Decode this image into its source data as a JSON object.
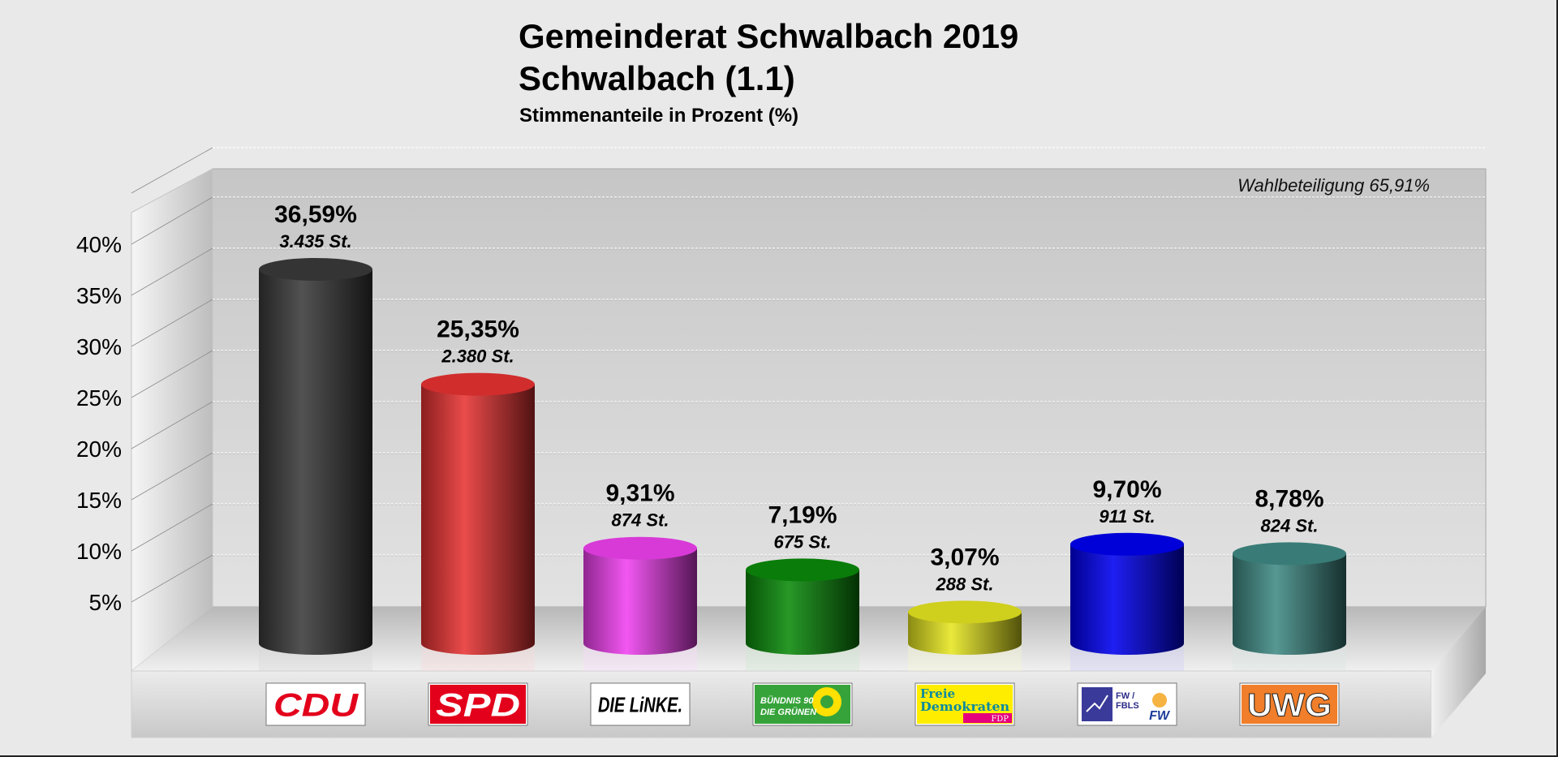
{
  "header": {
    "title": "Gemeinderat Schwalbach 2019",
    "subtitle": "Schwalbach (1.1)",
    "caption": "Stimmenanteile in Prozent (%)"
  },
  "chart_data": {
    "type": "bar",
    "style": "3d-cylinder",
    "title": "Gemeinderat Schwalbach 2019",
    "subtitle": "Schwalbach (1.1)",
    "ylabel": "Stimmenanteile in Prozent (%)",
    "xlabel": "",
    "ylim": [
      0,
      45
    ],
    "yticks": [
      5,
      10,
      15,
      20,
      25,
      30,
      35,
      40
    ],
    "ytick_labels": [
      "5%",
      "10%",
      "15%",
      "20%",
      "25%",
      "30%",
      "35%",
      "40%"
    ],
    "grid": true,
    "annotation": "Wahlbeteiligung 65,91%",
    "categories": [
      "CDU",
      "SPD",
      "DIE LINKE.",
      "BÜNDNIS 90 DIE GRÜNEN",
      "Freie Demokraten FDP",
      "FW / FBLS",
      "UWG"
    ],
    "values": [
      36.59,
      25.35,
      9.31,
      7.19,
      3.07,
      9.7,
      8.78
    ],
    "value_labels": [
      "36,59%",
      "25,35%",
      "9,31%",
      "7,19%",
      "3,07%",
      "9,70%",
      "8,78%"
    ],
    "votes": [
      3435,
      2380,
      874,
      675,
      288,
      911,
      824
    ],
    "vote_labels": [
      "3.435 St.",
      "2.380 St.",
      "874 St.",
      "675 St.",
      "288 St.",
      "911 St.",
      "824 St."
    ],
    "colors": [
      "#3a3a3a",
      "#e83232",
      "#f040f0",
      "#0a8a0a",
      "#e6e620",
      "#0000f0",
      "#3f8a84"
    ]
  },
  "logos": [
    {
      "name": "cdu",
      "text": "CDU",
      "bg": "#ffffff",
      "fg": "#e3001b"
    },
    {
      "name": "spd",
      "text": "SPD",
      "bg": "#e3001b",
      "fg": "#ffffff"
    },
    {
      "name": "die-linke",
      "text": "DIE LiNKE.",
      "bg": "#ffffff",
      "fg": "#000000"
    },
    {
      "name": "gruene",
      "line1": "BÜNDNIS 90",
      "line2": "DIE GRÜNEN",
      "bg": "#36a33a",
      "fg": "#ffffff"
    },
    {
      "name": "fdp",
      "line1": "Freie",
      "line2": "Demokraten",
      "tag": "FDP",
      "bg": "#ffed00",
      "fg": "#0a8aa0",
      "tagbg": "#e5007d"
    },
    {
      "name": "fw-fbls",
      "line1": "FW /",
      "line2": "FBLS",
      "tag": "FW",
      "bg": "#ffffff",
      "fg": "#2d2d8a"
    },
    {
      "name": "uwg",
      "text": "UWG",
      "bg": "#f07e2a",
      "fg": "#ffffff"
    }
  ]
}
